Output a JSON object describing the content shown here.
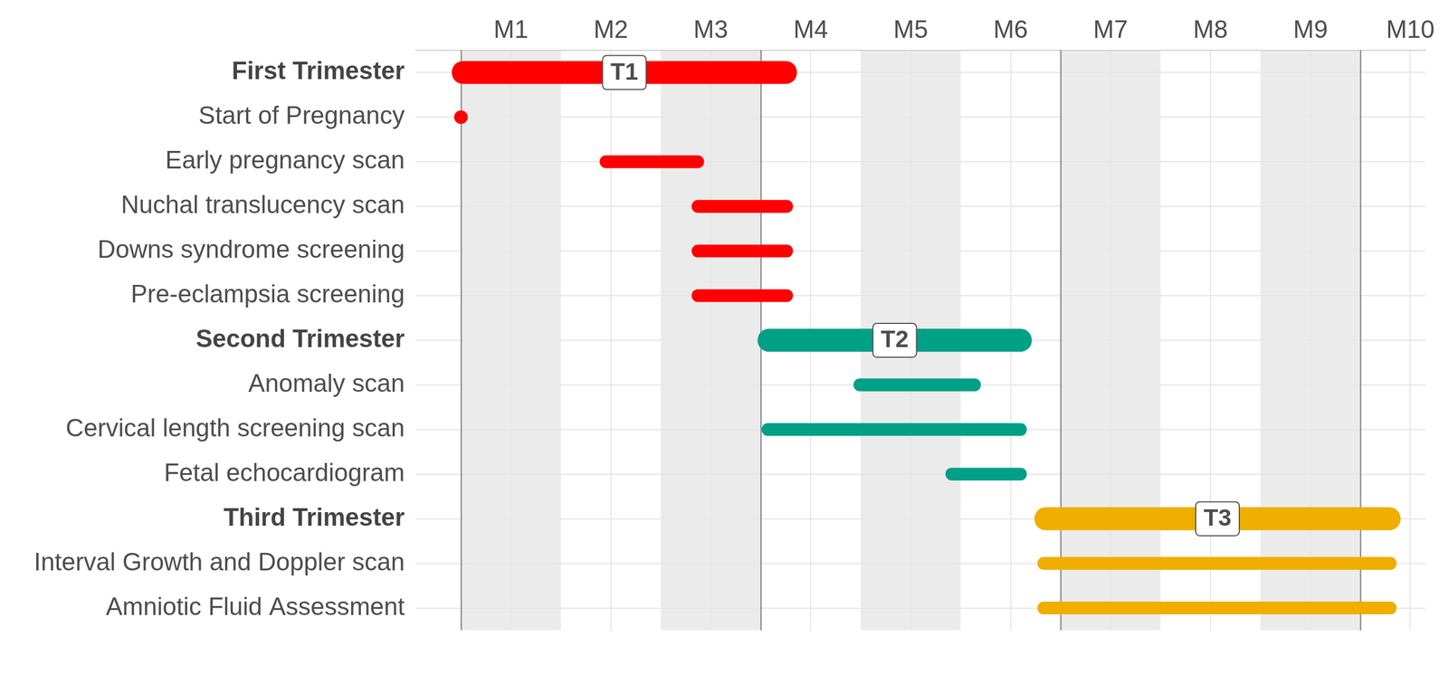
{
  "chart_data": {
    "type": "gantt",
    "groups": [
      {
        "title": "First Trimester",
        "label": "T1",
        "color": "#FF0000",
        "start": 0.41,
        "end": 3.86,
        "tasks": [
          {
            "name": "Start of Pregnancy",
            "at": 0.5
          },
          {
            "name": "Early pregnancy scan",
            "start": 1.89,
            "end": 2.93
          },
          {
            "name": "Nuchal translucency scan",
            "start": 2.81,
            "end": 3.82
          },
          {
            "name": "Downs syndrome screening",
            "start": 2.81,
            "end": 3.82
          },
          {
            "name": "Pre-eclampsia screening",
            "start": 2.81,
            "end": 3.82
          }
        ]
      },
      {
        "title": "Second Trimester",
        "label": "T2",
        "color": "#00A087",
        "start": 3.47,
        "end": 6.21,
        "tasks": [
          {
            "name": "Anomaly scan",
            "start": 4.43,
            "end": 5.7
          },
          {
            "name": "Cervical length screening scan",
            "start": 3.51,
            "end": 6.16
          },
          {
            "name": "Fetal echocardiogram",
            "start": 5.35,
            "end": 6.16
          }
        ]
      },
      {
        "title": "Third Trimester",
        "label": "T3",
        "color": "#F0AE00",
        "start": 6.24,
        "end": 9.9,
        "tasks": [
          {
            "name": "Interval Growth and Doppler scan",
            "start": 6.27,
            "end": 9.86
          },
          {
            "name": "Amniotic Fluid Assessment",
            "start": 6.27,
            "end": 9.86
          }
        ]
      }
    ],
    "xlim": [
      0.05,
      10.15
    ],
    "xticks": [
      {
        "value": 1,
        "label": "M1"
      },
      {
        "value": 2,
        "label": "M2"
      },
      {
        "value": 3,
        "label": "M3"
      },
      {
        "value": 4,
        "label": "M4"
      },
      {
        "value": 5,
        "label": "M5"
      },
      {
        "value": 6,
        "label": "M6"
      },
      {
        "value": 7,
        "label": "M7"
      },
      {
        "value": 8,
        "label": "M8"
      },
      {
        "value": 9,
        "label": "M9"
      },
      {
        "value": 10,
        "label": "M10"
      }
    ],
    "bands": [
      [
        0.5,
        1.5
      ],
      [
        2.5,
        3.5
      ],
      [
        4.5,
        5.5
      ],
      [
        6.5,
        7.5
      ],
      [
        8.5,
        9.5
      ]
    ],
    "vlines": [
      0.5,
      3.5,
      6.5,
      9.5
    ],
    "grid": true
  }
}
